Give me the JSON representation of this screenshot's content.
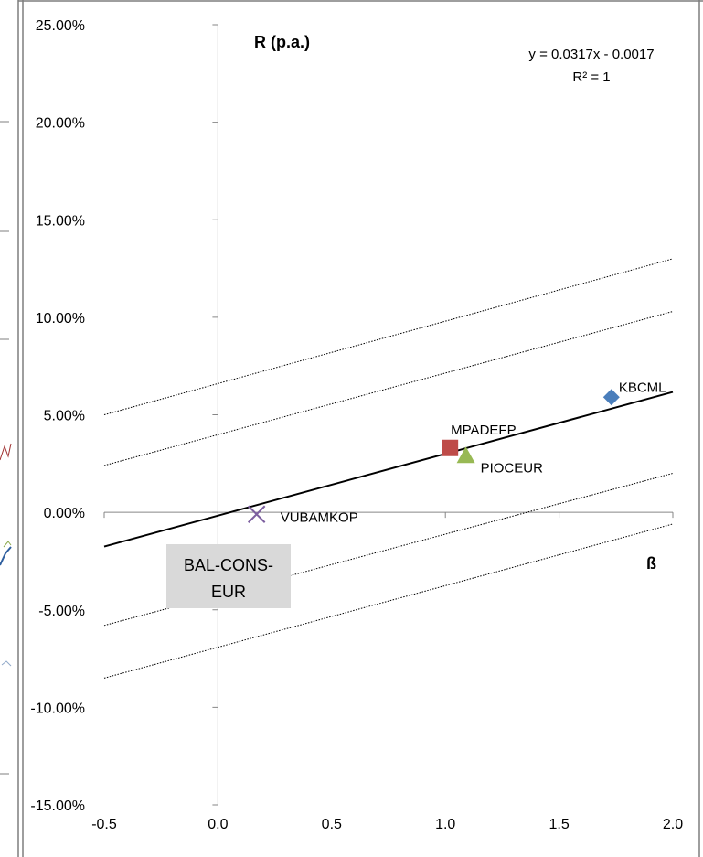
{
  "chart_data": {
    "type": "scatter",
    "title": "",
    "xlabel": "ß",
    "ylabel": "R (p.a.)",
    "xlim": [
      -0.5,
      2.0
    ],
    "ylim": [
      -15,
      25
    ],
    "x_ticks": [
      "-0.5",
      "0.0",
      "0.5",
      "1.0",
      "1.5",
      "2.0"
    ],
    "y_ticks": [
      "25.00%",
      "20.00%",
      "15.00%",
      "10.00%",
      "5.00%",
      "0.00%",
      "-5.00%",
      "-10.00%",
      "-15.00%"
    ],
    "grid": false,
    "trend_equation": "y = 0.0317x - 0.0017",
    "trend_r2": "R² = 1",
    "trendline": {
      "slope": 3.17,
      "intercept": -0.17
    },
    "band_lines": [
      {
        "from": [
          -0.5,
          5.0
        ],
        "to": [
          2.0,
          13.0
        ]
      },
      {
        "from": [
          -0.5,
          2.4
        ],
        "to": [
          2.0,
          10.3
        ]
      },
      {
        "from": [
          -0.5,
          -5.8
        ],
        "to": [
          2.0,
          2.0
        ]
      },
      {
        "from": [
          -0.5,
          -8.5
        ],
        "to": [
          2.0,
          -0.6
        ]
      }
    ],
    "points": [
      {
        "name": "KBCML",
        "x": 1.73,
        "y": 5.9,
        "marker": "diamond",
        "color": "#4a7ebb"
      },
      {
        "name": "MPADEFP",
        "x": 1.02,
        "y": 3.3,
        "marker": "square",
        "color": "#be4b48"
      },
      {
        "name": "PIOCEUR",
        "x": 1.09,
        "y": 2.9,
        "marker": "triangle",
        "color": "#98b954"
      },
      {
        "name": "VUBAMKOP",
        "x": 0.17,
        "y": -0.1,
        "marker": "cross",
        "color": "#7d60a0"
      }
    ],
    "annotation_box": {
      "line1": "BAL-CONS-",
      "line2": "EUR"
    }
  }
}
